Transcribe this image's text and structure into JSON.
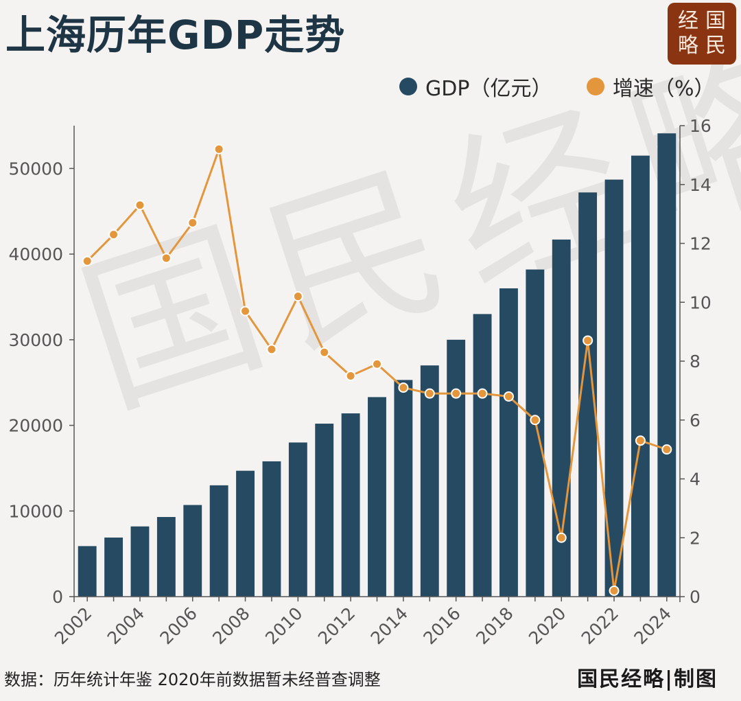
{
  "header": {
    "title": "上海历年GDP走势",
    "logo_line1": "经国",
    "logo_line2": "略民"
  },
  "legend": {
    "gdp_label": "GDP（亿元）",
    "growth_label": "增速（%）"
  },
  "watermark": "国民经略",
  "footer": {
    "source": "数据：历年统计年鉴  2020年前数据暂未经普查调整",
    "credit": "国民经略|制图"
  },
  "colors": {
    "bar": "#254a62",
    "line": "#e4963c",
    "axis": "#555555",
    "tick_label": "#555555",
    "logo_bg": "#8b3412"
  },
  "chart_data": {
    "type": "bar",
    "x": [
      2002,
      2003,
      2004,
      2005,
      2006,
      2007,
      2008,
      2009,
      2010,
      2011,
      2012,
      2013,
      2014,
      2015,
      2016,
      2017,
      2018,
      2019,
      2020,
      2021,
      2022,
      2023,
      2024
    ],
    "xticks": [
      2002,
      2004,
      2006,
      2008,
      2010,
      2012,
      2014,
      2016,
      2018,
      2020,
      2022,
      2024
    ],
    "series": [
      {
        "name": "GDP（亿元）",
        "type": "bar",
        "axis": "left",
        "values": [
          5900,
          6900,
          8200,
          9300,
          10700,
          13000,
          14700,
          15800,
          18000,
          20200,
          21400,
          23300,
          25300,
          27000,
          30000,
          33000,
          36000,
          38200,
          41700,
          47200,
          48700,
          51500,
          54100
        ]
      },
      {
        "name": "增速（%）",
        "type": "line",
        "axis": "right",
        "values": [
          11.4,
          12.3,
          13.3,
          11.5,
          12.7,
          15.2,
          9.7,
          8.4,
          10.2,
          8.3,
          7.5,
          7.9,
          7.1,
          6.9,
          6.9,
          6.9,
          6.8,
          6.0,
          2.0,
          8.7,
          0.2,
          5.3,
          5.0
        ]
      }
    ],
    "yleft": {
      "range": [
        0,
        55000
      ],
      "ticks": [
        0,
        10000,
        20000,
        30000,
        40000,
        50000
      ]
    },
    "yright": {
      "range": [
        0,
        16
      ],
      "ticks": [
        0,
        2,
        4,
        6,
        8,
        10,
        12,
        14,
        16
      ]
    },
    "legend_position": "top-right",
    "grid": false
  }
}
